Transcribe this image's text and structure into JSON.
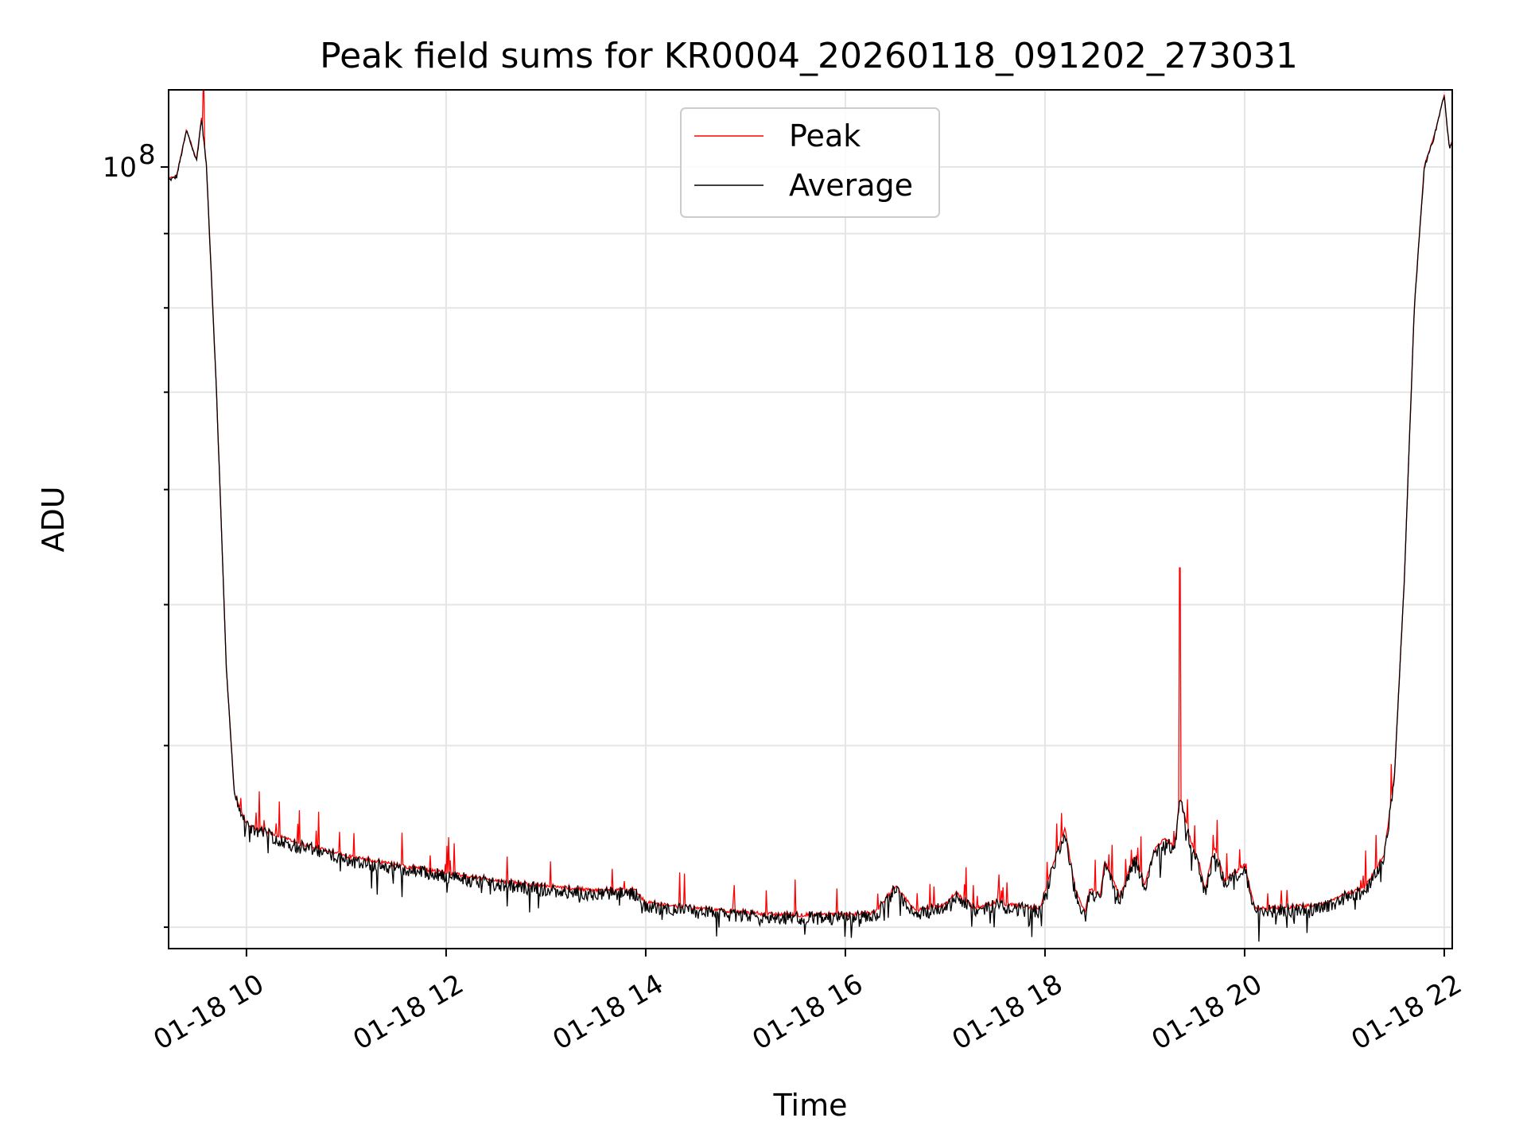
{
  "chart_data": {
    "type": "line",
    "title": "Peak field sums for KR0004_20260118_091202_273031",
    "xlabel": "Time",
    "ylabel": "ADU",
    "yscale": "log",
    "y_tick_labels": [
      {
        "value": 100000000,
        "base": "10",
        "exp": "8"
      }
    ],
    "ylim": [
      29000000,
      113000000
    ],
    "xlim_hours": [
      9.22,
      22.08
    ],
    "x_tick_labels": [
      {
        "hour": 10,
        "label": "01-18 10"
      },
      {
        "hour": 12,
        "label": "01-18 12"
      },
      {
        "hour": 14,
        "label": "01-18 14"
      },
      {
        "hour": 16,
        "label": "01-18 16"
      },
      {
        "hour": 18,
        "label": "01-18 18"
      },
      {
        "hour": 20,
        "label": "01-18 20"
      },
      {
        "hour": 22,
        "label": "01-18 22"
      }
    ],
    "grid": true,
    "legend_position": "top-center",
    "series": [
      {
        "name": "Peak",
        "color": "#ff0000"
      },
      {
        "name": "Average",
        "color": "#000000"
      }
    ],
    "baseline_points": [
      [
        9.22,
        98000000
      ],
      [
        9.3,
        98500000
      ],
      [
        9.4,
        106000000
      ],
      [
        9.5,
        101000000
      ],
      [
        9.55,
        108000000
      ],
      [
        9.6,
        100000000
      ],
      [
        9.7,
        70000000
      ],
      [
        9.8,
        45000000
      ],
      [
        9.88,
        37000000
      ],
      [
        10.0,
        35200000
      ],
      [
        10.5,
        34200000
      ],
      [
        11.0,
        33500000
      ],
      [
        11.5,
        33000000
      ],
      [
        12.0,
        32600000
      ],
      [
        12.5,
        32200000
      ],
      [
        13.0,
        31900000
      ],
      [
        13.5,
        31700000
      ],
      [
        13.9,
        31700000
      ],
      [
        14.0,
        31100000
      ],
      [
        14.5,
        30800000
      ],
      [
        15.0,
        30600000
      ],
      [
        15.5,
        30500000
      ],
      [
        16.0,
        30500000
      ],
      [
        16.3,
        30600000
      ],
      [
        16.5,
        31900000
      ],
      [
        16.6,
        31300000
      ],
      [
        16.7,
        30700000
      ],
      [
        17.0,
        31000000
      ],
      [
        17.1,
        31600000
      ],
      [
        17.3,
        30800000
      ],
      [
        17.5,
        31100000
      ],
      [
        17.95,
        30800000
      ],
      [
        18.05,
        32500000
      ],
      [
        18.2,
        35000000
      ],
      [
        18.3,
        31800000
      ],
      [
        18.4,
        30600000
      ],
      [
        18.45,
        31800000
      ],
      [
        18.55,
        31400000
      ],
      [
        18.6,
        33200000
      ],
      [
        18.75,
        31400000
      ],
      [
        18.9,
        33500000
      ],
      [
        19.0,
        32000000
      ],
      [
        19.1,
        33800000
      ],
      [
        19.2,
        34400000
      ],
      [
        19.3,
        34000000
      ],
      [
        19.35,
        36800000
      ],
      [
        19.45,
        34500000
      ],
      [
        19.55,
        33000000
      ],
      [
        19.6,
        31700000
      ],
      [
        19.7,
        34000000
      ],
      [
        19.8,
        32200000
      ],
      [
        20.0,
        33000000
      ],
      [
        20.1,
        30800000
      ],
      [
        20.5,
        30900000
      ],
      [
        20.8,
        31000000
      ],
      [
        21.0,
        31500000
      ],
      [
        21.2,
        31800000
      ],
      [
        21.4,
        33600000
      ],
      [
        21.5,
        38000000
      ],
      [
        21.6,
        52000000
      ],
      [
        21.7,
        80000000
      ],
      [
        21.8,
        100000000
      ],
      [
        21.9,
        105000000
      ],
      [
        22.0,
        112000000
      ],
      [
        22.05,
        103000000
      ],
      [
        22.08,
        104000000
      ]
    ],
    "notable_spikes": [
      {
        "hour": 19.35,
        "peak": 53000000
      },
      {
        "hour": 9.57,
        "peak": 113000000
      }
    ]
  }
}
